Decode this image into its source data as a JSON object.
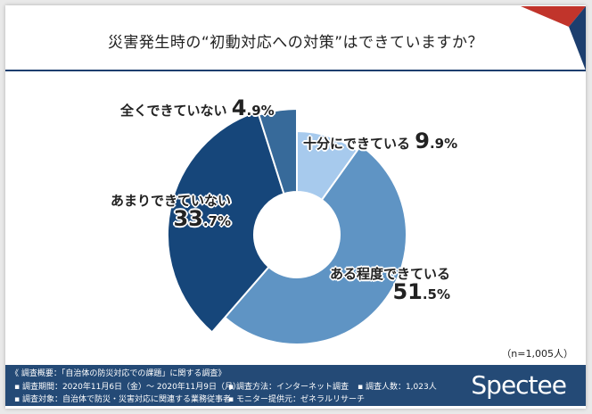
{
  "title": "災害発生時の“初動対応への対策”はできていますか？",
  "sample_note": "（n=1,005人）",
  "colors": {
    "accent_red": "#c1342b",
    "navy": "#1c3e6e",
    "footer": "#244a76"
  },
  "chart_data": {
    "type": "pie",
    "title": "災害発生時の“初動対応への対策”はできていますか？",
    "n": 1005,
    "slices": [
      {
        "label": "十分にできている",
        "value": 9.9,
        "int": "9",
        "dec": ".9%",
        "color": "#a7caed"
      },
      {
        "label": "ある程度できている",
        "value": 51.5,
        "int": "51",
        "dec": ".5%",
        "color": "#5f94c4"
      },
      {
        "label": "あまりできていない",
        "value": 33.7,
        "int": "33",
        "dec": ".7%",
        "color": "#16467a"
      },
      {
        "label": "全くできていない",
        "value": 4.9,
        "int": "4",
        "dec": ".9%",
        "color": "#376a9a"
      }
    ]
  },
  "footer": {
    "heading": "《 調査概要：「自治体の防災対応での課題」に関する調査》",
    "period": "▪ 調査期間：2020年11月6日（金）～ 2020年11月9日（月）",
    "method": "▪ 調査方法：インターネット調査",
    "count": "▪ 調査人数：1,023人",
    "target": "▪ 調査対象：自治体で防災・災害対応に関連する業務従事者",
    "provider": "▪ モニター提供元：ゼネラルリサーチ",
    "logo": "Spectee"
  }
}
